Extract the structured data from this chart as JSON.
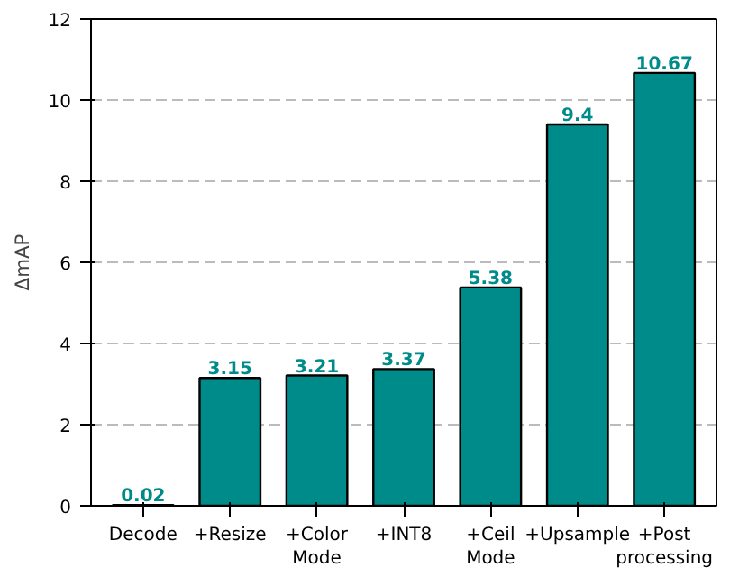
{
  "chart_data": {
    "type": "bar",
    "ylabel": "ΔmAP",
    "categories": [
      "Decode",
      "+Resize",
      "+Color\nMode",
      "+INT8",
      "+Ceil\nMode",
      "+Upsample",
      "+Post\nprocessing"
    ],
    "values": [
      0.02,
      3.15,
      3.21,
      3.37,
      5.38,
      9.4,
      10.67
    ],
    "color": "#008b8b",
    "data_labels": true,
    "ylim": [
      0,
      12
    ],
    "yticks": [
      0,
      2,
      4,
      6,
      8,
      10,
      12
    ],
    "grid": "y"
  }
}
